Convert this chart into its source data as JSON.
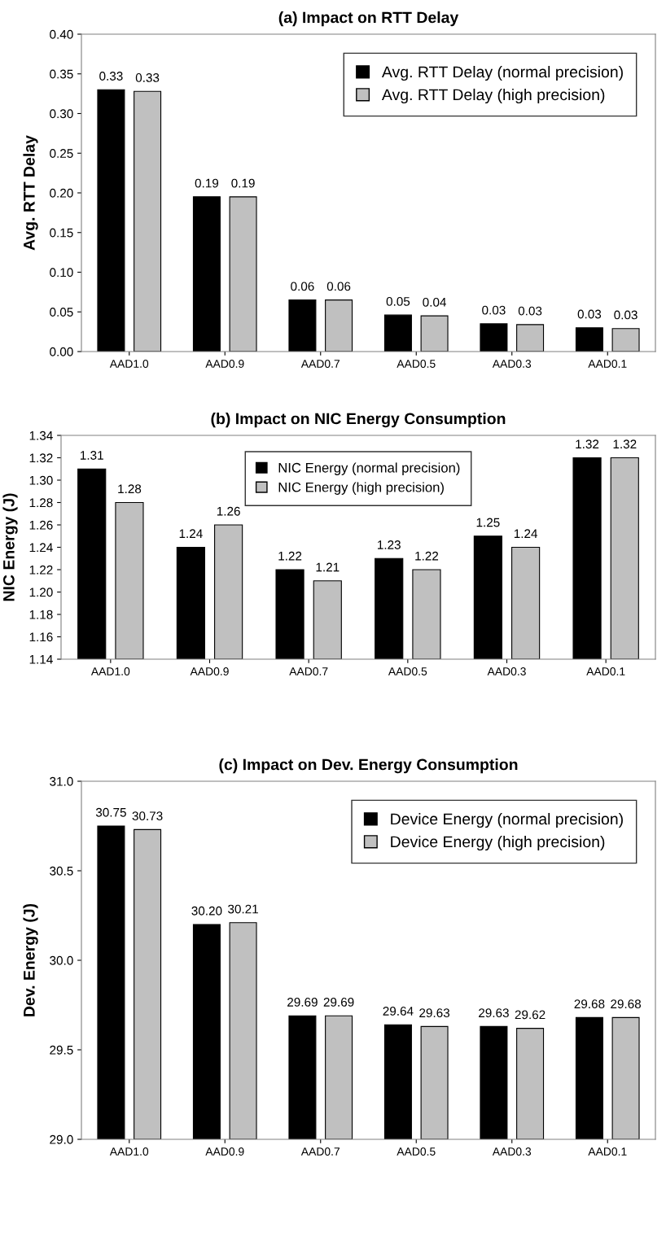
{
  "chart_data": [
    {
      "type": "bar",
      "title": "(a) Impact on RTT Delay",
      "ylabel": "Avg. RTT Delay",
      "categories": [
        "AAD1.0",
        "AAD0.9",
        "AAD0.7",
        "AAD0.5",
        "AAD0.3",
        "AAD0.1"
      ],
      "series": [
        {
          "name": "Avg. RTT Delay (normal precision)",
          "color": "#000000",
          "values": [
            0.33,
            0.195,
            0.065,
            0.046,
            0.035,
            0.03
          ],
          "value_labels": [
            "0.33",
            "0.19",
            "0.06",
            "0.05",
            "0.03",
            "0.03"
          ]
        },
        {
          "name": "Avg. RTT Delay (high precision)",
          "color": "#c0c0c0",
          "values": [
            0.328,
            0.195,
            0.065,
            0.045,
            0.034,
            0.029
          ],
          "value_labels": [
            "0.33",
            "0.19",
            "0.06",
            "0.04",
            "0.03",
            "0.03"
          ]
        }
      ],
      "ylim": [
        0,
        0.4
      ],
      "yticks": [
        {
          "value": 0,
          "label": "0.00"
        },
        {
          "value": 0.05,
          "label": "0.05"
        },
        {
          "value": 0.1,
          "label": "0.10"
        },
        {
          "value": 0.15,
          "label": "0.15"
        },
        {
          "value": 0.2,
          "label": "0.20"
        },
        {
          "value": 0.25,
          "label": "0.25"
        },
        {
          "value": 0.3,
          "label": "0.30"
        },
        {
          "value": 0.35,
          "label": "0.35"
        },
        {
          "value": 0.4,
          "label": "0.40"
        }
      ],
      "legend": "top right",
      "grid": false
    },
    {
      "type": "bar",
      "title": "(b) Impact on NIC Energy Consumption",
      "ylabel": "NIC Energy (J)",
      "categories": [
        "AAD1.0",
        "AAD0.9",
        "AAD0.7",
        "AAD0.5",
        "AAD0.3",
        "AAD0.1"
      ],
      "series": [
        {
          "name": "NIC Energy (normal precision)",
          "color": "#000000",
          "values": [
            1.31,
            1.24,
            1.22,
            1.23,
            1.25,
            1.32
          ]
        },
        {
          "name": "NIC Energy (high precision)",
          "color": "#c0c0c0",
          "values": [
            1.28,
            1.26,
            1.21,
            1.22,
            1.24,
            1.32
          ]
        }
      ],
      "data_labels": true,
      "ylim": [
        1.14,
        1.34
      ],
      "yticks": [
        {
          "value": 1.14,
          "label": "1.14"
        },
        {
          "value": 1.16,
          "label": "1.16"
        },
        {
          "value": 1.18,
          "label": "1.18"
        },
        {
          "value": 1.2,
          "label": "1.20"
        },
        {
          "value": 1.22,
          "label": "1.22"
        },
        {
          "value": 1.24,
          "label": "1.24"
        },
        {
          "value": 1.26,
          "label": "1.26"
        },
        {
          "value": 1.28,
          "label": "1.28"
        },
        {
          "value": 1.3,
          "label": "1.30"
        },
        {
          "value": 1.32,
          "label": "1.32"
        },
        {
          "value": 1.34,
          "label": "1.34"
        }
      ],
      "legend": "top",
      "grid": false
    },
    {
      "type": "bar",
      "title": "(c) Impact on Dev. Energy Consumption",
      "ylabel": "Dev. Energy (J)",
      "categories": [
        "AAD1.0",
        "AAD0.9",
        "AAD0.7",
        "AAD0.5",
        "AAD0.3",
        "AAD0.1"
      ],
      "series": [
        {
          "name": "Device Energy (normal precision)",
          "color": "#000000",
          "values": [
            30.75,
            30.2,
            29.69,
            29.64,
            29.63,
            29.68
          ],
          "value_labels": [
            "30.75",
            "30.20",
            "29.69",
            "29.64",
            "29.63",
            "29.68"
          ]
        },
        {
          "name": "Device Energy (high precision)",
          "color": "#c0c0c0",
          "values": [
            30.73,
            30.21,
            29.69,
            29.63,
            29.62,
            29.68
          ],
          "value_labels": [
            "30.73",
            "30.21",
            "29.69",
            "29.63",
            "29.62",
            "29.68"
          ]
        }
      ],
      "ylim": [
        29.0,
        31.0
      ],
      "yticks": [
        {
          "value": 29.0,
          "label": "29.0"
        },
        {
          "value": 29.5,
          "label": "29.5"
        },
        {
          "value": 30.0,
          "label": "30.0"
        },
        {
          "value": 30.5,
          "label": "30.5"
        },
        {
          "value": 31.0,
          "label": "31.0"
        }
      ],
      "legend": "top right",
      "grid": false
    }
  ]
}
